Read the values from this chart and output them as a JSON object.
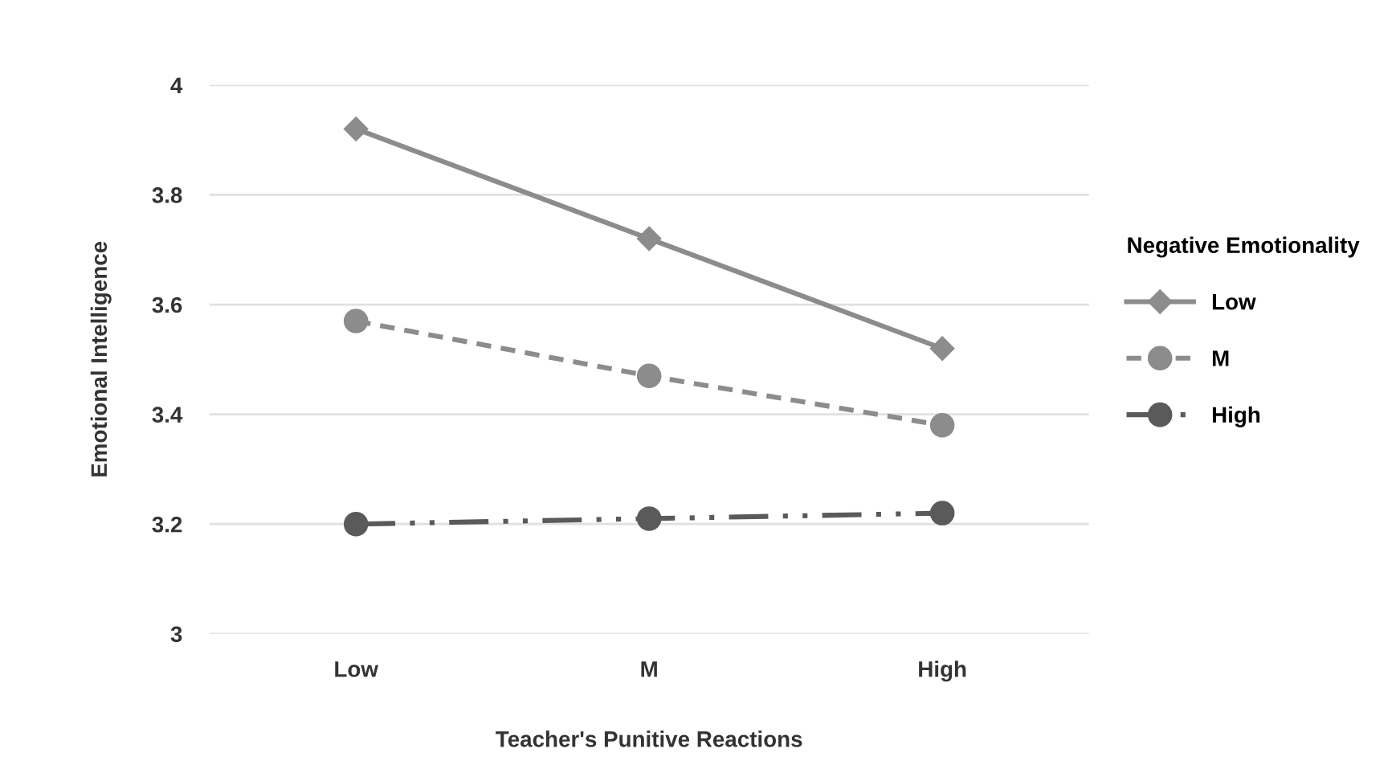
{
  "chart_data": {
    "type": "line",
    "xlabel": "Teacher's Punitive Reactions",
    "ylabel": "Emotional Intelligence",
    "legend_title": "Negative Emotionality",
    "legend": "right",
    "categories": [
      "Low",
      "M",
      "High"
    ],
    "ylim": [
      3,
      4
    ],
    "yticks": [
      3,
      3.2,
      3.4,
      3.6,
      3.8,
      4
    ],
    "grid": "y",
    "series": [
      {
        "name": "Low",
        "color": "#8c8c8c",
        "marker": "diamond",
        "line_style": "solid",
        "values": [
          3.92,
          3.72,
          3.52
        ]
      },
      {
        "name": "M",
        "color": "#8c8c8c",
        "marker": "circle",
        "line_style": "dashed",
        "values": [
          3.57,
          3.47,
          3.38
        ]
      },
      {
        "name": "High",
        "color": "#5a5a5a",
        "marker": "circle",
        "line_style": "dashdotdot",
        "values": [
          3.2,
          3.21,
          3.22
        ]
      }
    ]
  }
}
